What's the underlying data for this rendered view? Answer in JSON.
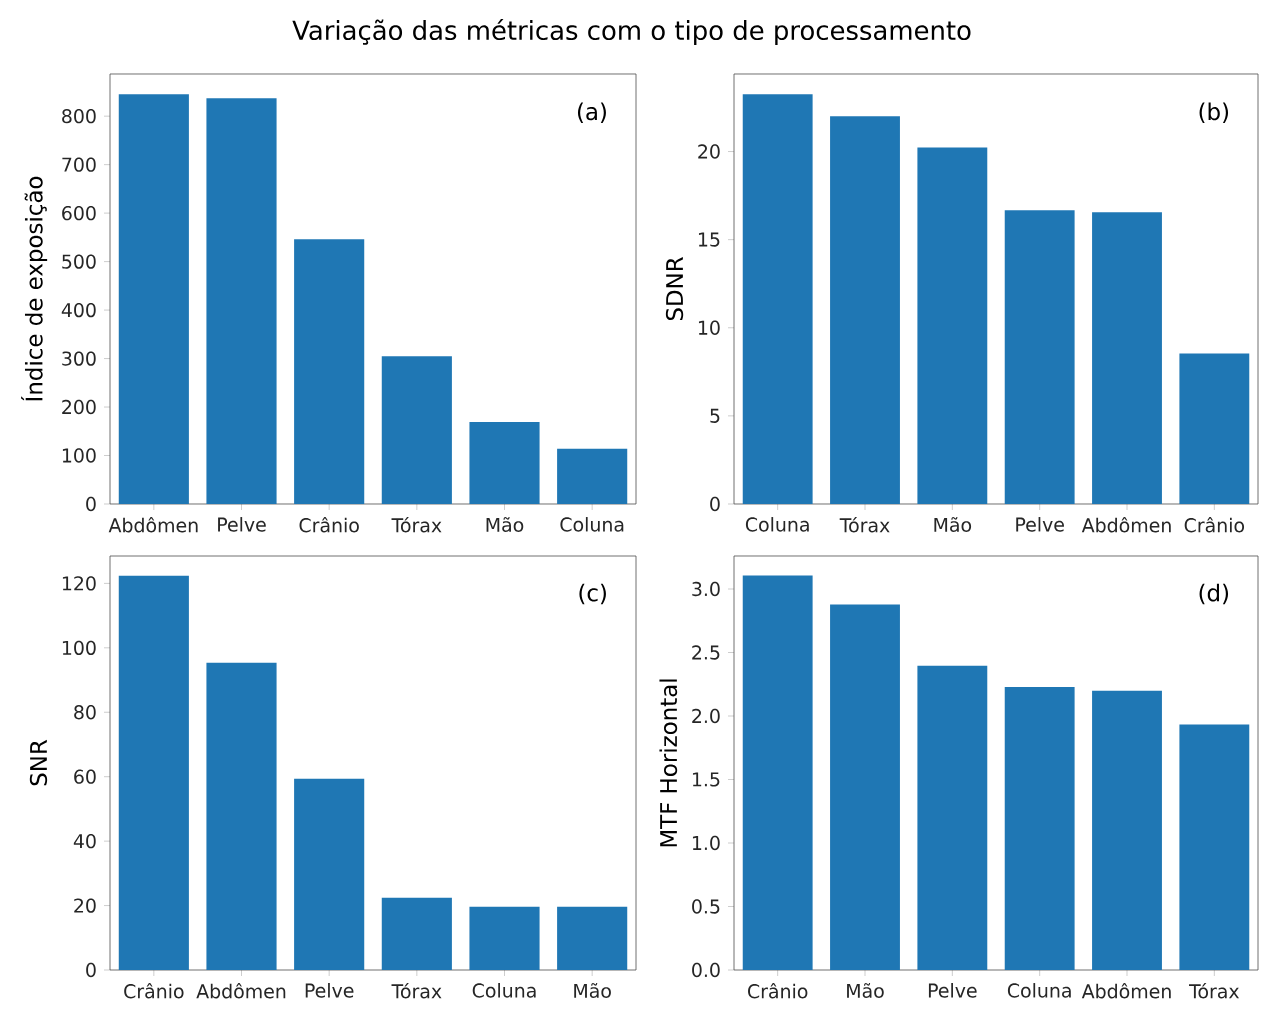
{
  "chart_data": [
    {
      "type": "bar",
      "title": "Variação das métricas com o tipo de processamento",
      "ylabel": "Índice de exposição",
      "annotations": [
        "(a)"
      ],
      "categories": [
        "Abdômen",
        "Pelve",
        "Crânio",
        "Tórax",
        "Mão",
        "Coluna"
      ],
      "values": [
        845,
        837,
        546,
        305,
        169,
        114
      ],
      "color": "#1f77b4",
      "ylim": [
        0,
        887
      ],
      "yticks": [
        0,
        100,
        200,
        300,
        400,
        500,
        600,
        700,
        800
      ]
    },
    {
      "type": "bar",
      "ylabel": "SDNR",
      "annotations": [
        "(b)"
      ],
      "categories": [
        "Coluna",
        "Tórax",
        "Mão",
        "Pelve",
        "Abdômen",
        "Crânio"
      ],
      "values": [
        23.25,
        22.0,
        20.23,
        16.67,
        16.56,
        8.54
      ],
      "color": "#1f77b4",
      "ylim": [
        0,
        24.4
      ],
      "yticks": [
        0,
        5,
        10,
        15,
        20
      ]
    },
    {
      "type": "bar",
      "ylabel": "SNR",
      "annotations": [
        "(c)"
      ],
      "categories": [
        "Crânio",
        "Abdômen",
        "Pelve",
        "Tórax",
        "Coluna",
        "Mão"
      ],
      "values": [
        122.4,
        95.4,
        59.4,
        22.4,
        19.6,
        19.6
      ],
      "color": "#1f77b4",
      "ylim": [
        0,
        128.5
      ],
      "yticks": [
        0,
        20,
        40,
        60,
        80,
        100,
        120
      ]
    },
    {
      "type": "bar",
      "ylabel": "MTF Horizontal",
      "annotations": [
        "(d)"
      ],
      "categories": [
        "Crânio",
        "Mão",
        "Pelve",
        "Coluna",
        "Abdômen",
        "Tórax"
      ],
      "values": [
        3.107,
        2.878,
        2.396,
        2.228,
        2.198,
        1.934
      ],
      "color": "#1f77b4",
      "ylim": [
        0,
        3.26
      ],
      "yticks": [
        {
          "value": 0,
          "label": "0.0"
        },
        {
          "value": 0.5,
          "label": "0.5"
        },
        {
          "value": 1,
          "label": "1.0"
        },
        {
          "value": 1.5,
          "label": "1.5"
        },
        {
          "value": 2,
          "label": "2.0"
        },
        {
          "value": 2.5,
          "label": "2.5"
        },
        {
          "value": 3,
          "label": "3.0"
        }
      ]
    }
  ]
}
